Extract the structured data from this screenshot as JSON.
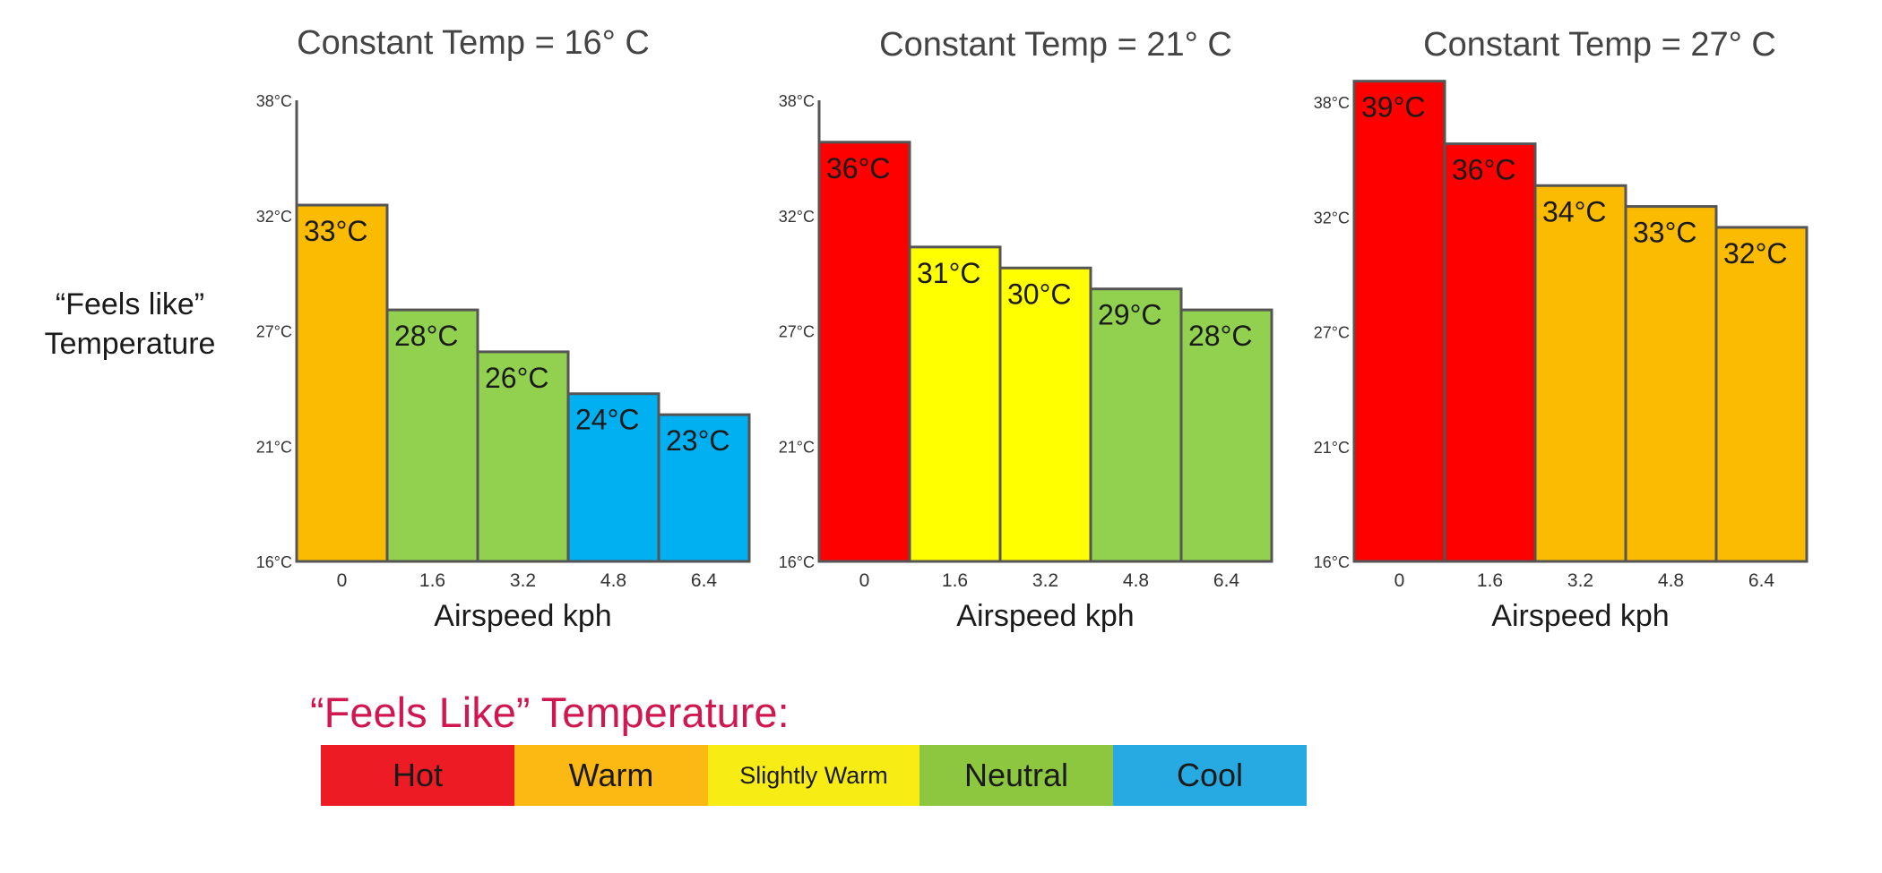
{
  "shared": {
    "ylabel_lines": [
      "“Feels like”",
      "Temperature"
    ],
    "xlabel": "Airspeed kph",
    "categories": [
      "0",
      "1.6",
      "3.2",
      "4.8",
      "6.4"
    ],
    "y_ticks": [
      "16°C",
      "21°C",
      "27°C",
      "32°C",
      "38°C"
    ],
    "ylim": [
      16,
      38
    ]
  },
  "chart_data": [
    {
      "type": "bar",
      "title": "Constant Temp = 16° C",
      "xlabel": "Airspeed kph",
      "categories": [
        "0",
        "1.6",
        "3.2",
        "4.8",
        "6.4"
      ],
      "values": [
        33,
        28,
        26,
        24,
        23
      ],
      "value_labels": [
        "33°C",
        "28°C",
        "26°C",
        "24°C",
        "23°C"
      ],
      "bar_colors": [
        "#fbbb00",
        "#92d050",
        "#92d050",
        "#00b0f0",
        "#00b0f0"
      ],
      "y_ticks": [
        "16°C",
        "21°C",
        "27°C",
        "32°C",
        "38°C"
      ],
      "ylim": [
        16,
        38
      ]
    },
    {
      "type": "bar",
      "title": "Constant Temp = 21° C",
      "xlabel": "Airspeed kph",
      "categories": [
        "0",
        "1.6",
        "3.2",
        "4.8",
        "6.4"
      ],
      "values": [
        36,
        31,
        30,
        29,
        28
      ],
      "value_labels": [
        "36°C",
        "31°C",
        "30°C",
        "29°C",
        "28°C"
      ],
      "bar_colors": [
        "#ff0000",
        "#ffff00",
        "#ffff00",
        "#92d050",
        "#92d050"
      ],
      "y_ticks": [
        "16°C",
        "21°C",
        "27°C",
        "32°C",
        "38°C"
      ],
      "ylim": [
        16,
        38
      ]
    },
    {
      "type": "bar",
      "title": "Constant Temp = 27° C",
      "xlabel": "Airspeed kph",
      "categories": [
        "0",
        "1.6",
        "3.2",
        "4.8",
        "6.4"
      ],
      "values": [
        39,
        36,
        34,
        33,
        32
      ],
      "value_labels": [
        "39°C",
        "36°C",
        "34°C",
        "33°C",
        "32°C"
      ],
      "bar_colors": [
        "#ff0000",
        "#ff0000",
        "#fbbb00",
        "#fbbb00",
        "#fbbb00"
      ],
      "y_ticks": [
        "16°C",
        "21°C",
        "27°C",
        "32°C",
        "38°C"
      ],
      "ylim": [
        16,
        38
      ]
    }
  ],
  "legend": {
    "title": "“Feels Like” Temperature:",
    "items": [
      {
        "label": "Hot",
        "color": "#ed1c24"
      },
      {
        "label": "Warm",
        "color": "#fdb913"
      },
      {
        "label": "Slightly Warm",
        "color": "#f7ec13"
      },
      {
        "label": "Neutral",
        "color": "#8dc63f"
      },
      {
        "label": "Cool",
        "color": "#27aae1"
      }
    ]
  }
}
